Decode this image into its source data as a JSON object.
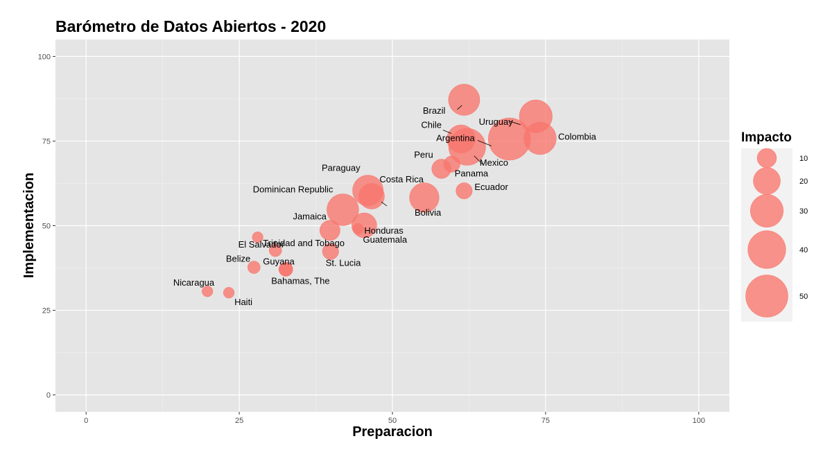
{
  "chart_data": {
    "type": "scatter",
    "title": "Barómetro de Datos Abiertos - 2020",
    "xlabel": "Preparacion",
    "ylabel": "Implementacion",
    "xlim": [
      -5,
      105
    ],
    "ylim": [
      -5,
      105
    ],
    "x_ticks": [
      0,
      25,
      50,
      75,
      100
    ],
    "y_ticks": [
      0,
      25,
      50,
      75,
      100
    ],
    "grid": true,
    "point_color": "#f8766d",
    "panel_color": "#e5e5e5",
    "legend": {
      "title": "Impacto",
      "position": "right",
      "sizes": [
        10,
        20,
        30,
        40,
        50
      ],
      "labels": [
        "10",
        "20",
        "30",
        "40",
        "50"
      ]
    },
    "points": [
      {
        "label": "Brazil",
        "x": 61.7,
        "y": 87.2,
        "size": 27
      },
      {
        "label": "Uruguay",
        "x": 73.4,
        "y": 82.3,
        "size": 30
      },
      {
        "label": "Argentina",
        "x": 69.1,
        "y": 75.6,
        "size": 50
      },
      {
        "label": "Colombia",
        "x": 74.1,
        "y": 75.8,
        "size": 29
      },
      {
        "label": "Chile",
        "x": 61.2,
        "y": 75.6,
        "size": 22
      },
      {
        "label": "Mexico",
        "x": 62.2,
        "y": 73.3,
        "size": 38
      },
      {
        "label": "Peru",
        "x": 58.0,
        "y": 66.8,
        "size": 10
      },
      {
        "label": "Panama",
        "x": 59.7,
        "y": 68.2,
        "size": 7
      },
      {
        "label": "Costa Rica",
        "x": 55.2,
        "y": 58.3,
        "size": 24
      },
      {
        "label": "Ecuador",
        "x": 61.7,
        "y": 60.3,
        "size": 7
      },
      {
        "label": "Paraguay",
        "x": 46.0,
        "y": 60.4,
        "size": 26
      },
      {
        "label": "Bolivia",
        "x": 46.6,
        "y": 58.7,
        "size": 18
      },
      {
        "label": "Dominican Republic",
        "x": 41.9,
        "y": 54.7,
        "size": 28
      },
      {
        "label": "Honduras",
        "x": 45.4,
        "y": 50.1,
        "size": 17
      },
      {
        "label": "Jamaica",
        "x": 39.8,
        "y": 48.6,
        "size": 11
      },
      {
        "label": "Guatemala",
        "x": 44.4,
        "y": 49.1,
        "size": 3
      },
      {
        "label": "El Salvador",
        "x": 28.0,
        "y": 46.6,
        "size": 3
      },
      {
        "label": "Trinidad and Tobago",
        "x": 30.9,
        "y": 42.7,
        "size": 4
      },
      {
        "label": "St. Lucia",
        "x": 39.9,
        "y": 42.4,
        "size": 7
      },
      {
        "label": "Belize",
        "x": 27.4,
        "y": 37.7,
        "size": 4
      },
      {
        "label": "Guyana",
        "x": 32.6,
        "y": 37.1,
        "size": 5
      },
      {
        "label": "Bahamas, The",
        "x": 32.6,
        "y": 37.1,
        "size": 5
      },
      {
        "label": "Nicaragua",
        "x": 19.8,
        "y": 30.6,
        "size": 3
      },
      {
        "label": "Haiti",
        "x": 23.3,
        "y": 30.2,
        "size": 3
      }
    ]
  }
}
